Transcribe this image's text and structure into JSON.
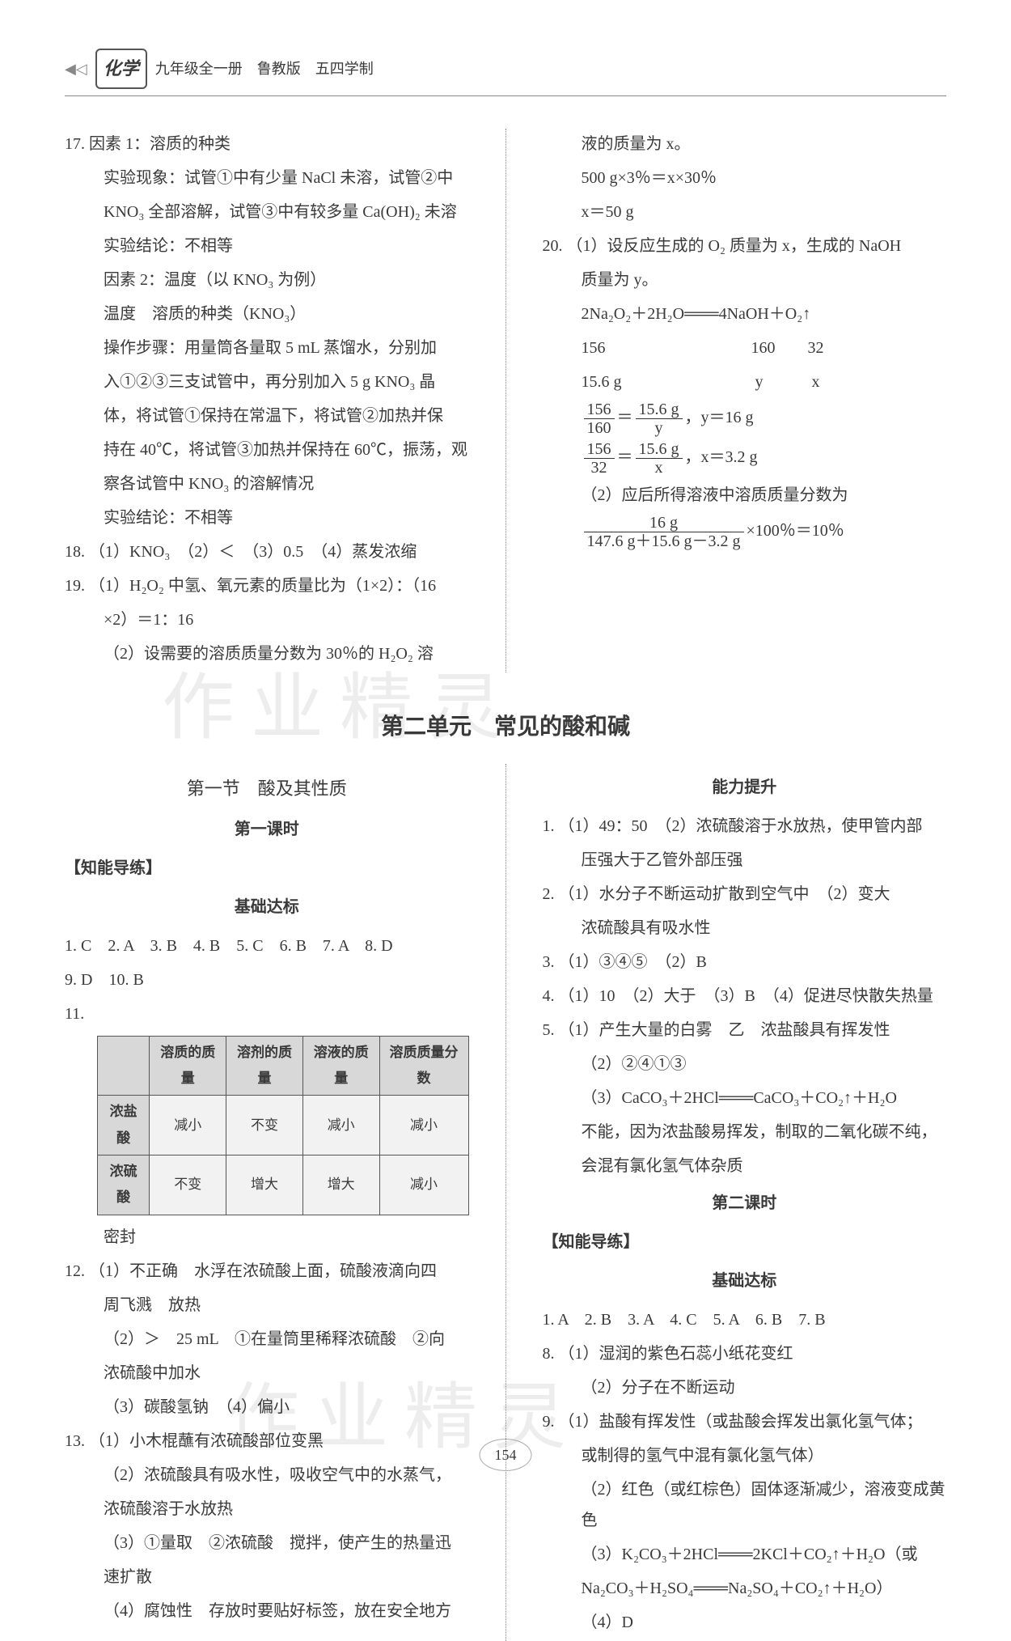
{
  "header": {
    "subject": "化学",
    "subtitle": "九年级全一册　鲁教版　五四学制"
  },
  "watermark": "作业精灵",
  "page_number": "154",
  "top_left": {
    "q17": {
      "l1": "17. 因素 1：溶质的种类",
      "l2": "实验现象：试管①中有少量 NaCl 未溶，试管②中",
      "l3": "KNO₃ 全部溶解，试管③中有较多量 Ca(OH)₂ 未溶",
      "l4": "实验结论：不相等",
      "l5": "因素 2：温度（以 KNO₃ 为例）",
      "l6": "温度　溶质的种类（KNO₃）",
      "l7": "操作步骤：用量筒各量取 5 mL 蒸馏水，分别加",
      "l8": "入①②③三支试管中，再分别加入 5 g KNO₃ 晶",
      "l9": "体，将试管①保持在常温下，将试管②加热并保",
      "l10": "持在 40℃，将试管③加热并保持在 60℃，振荡，观",
      "l11": "察各试管中 KNO₃ 的溶解情况",
      "l12": "实验结论：不相等"
    },
    "q18": "18. （1）KNO₃　（2）＜　（3）0.5　（4）蒸发浓缩",
    "q19": {
      "l1": "19. （1）H₂O₂ 中氢、氧元素的质量比为（1×2）：（16",
      "l2": "×2）＝1：16",
      "l3": "（2）设需要的溶质质量分数为 30％的 H₂O₂ 溶"
    }
  },
  "top_right": {
    "q19c": {
      "l1": "液的质量为 x。",
      "l2": "500 g×3％＝x×30％",
      "l3": "x＝50 g"
    },
    "q20": {
      "l1": "20. （1）设反应生成的 O₂ 质量为 x，生成的 NaOH",
      "l2": "质量为 y。",
      "eq": "2Na₂O₂＋2H₂O═══4NaOH＋O₂↑",
      "r1": "156　　　　　　　　　160　　32",
      "r2": "15.6 g　　　　　　　　 y　　　x",
      "f1_l": "156",
      "f1_r": "160",
      "f1_eq_l": "15.6 g",
      "f1_eq_r": "y",
      "f1_ans": "，y＝16 g",
      "f2_l": "156",
      "f2_r": "32",
      "f2_eq_l": "15.6 g",
      "f2_eq_r": "x",
      "f2_ans": "，x＝3.2 g",
      "l3": "（2）应后所得溶液中溶质质量分数为",
      "f3_top": "16 g",
      "f3_bot": "147.6 g＋15.6 g－3.2 g",
      "f3_rest": "×100％＝10％"
    }
  },
  "unit_title": "第二单元　常见的酸和碱",
  "bottom_left": {
    "section": "第一节　酸及其性质",
    "lesson": "第一课时",
    "heading1": "【知能导练】",
    "sub1": "基础达标",
    "mc1": "1. C　2. A　3. B　4. B　5. C　6. B　7. A　8. D",
    "mc2": "9. D　10. B",
    "q11_label": "11.",
    "table": {
      "headers": [
        "",
        "溶质的质量",
        "溶剂的质量",
        "溶液的质量",
        "溶质质量分数"
      ],
      "rows": [
        [
          "浓盐酸",
          "减小",
          "不变",
          "减小",
          "减小"
        ],
        [
          "浓硫酸",
          "不变",
          "增大",
          "增大",
          "减小"
        ]
      ]
    },
    "q11_extra": "密封",
    "q12": {
      "l1": "12. （1）不正确　水浮在浓硫酸上面，硫酸液滴向四",
      "l2": "周飞溅　放热",
      "l3": "（2）＞　25 mL　①在量筒里稀释浓硫酸　②向",
      "l4": "浓硫酸中加水",
      "l5": "（3）碳酸氢钠　（4）偏小"
    },
    "q13": {
      "l1": "13. （1）小木棍蘸有浓硫酸部位变黑",
      "l2": "（2）浓硫酸具有吸水性，吸收空气中的水蒸气，",
      "l3": "浓硫酸溶于水放热",
      "l4": "（3）①量取　②浓硫酸　搅拌，使产生的热量迅",
      "l5": "速扩散",
      "l6": "（4）腐蚀性　存放时要贴好标签，放在安全地方"
    }
  },
  "bottom_right": {
    "sub2": "能力提升",
    "q1": "1. （1）49：50　（2）浓硫酸溶于水放热，使甲管内部",
    "q1b": "压强大于乙管外部压强",
    "q2": "2. （1）水分子不断运动扩散到空气中　（2）变大",
    "q2b": "浓硫酸具有吸水性",
    "q3": "3. （1）③④⑤　（2）B",
    "q4": "4. （1）10　（2）大于　（3）B　（4）促进尽快散失热量",
    "q5": "5. （1）产生大量的白雾　乙　浓盐酸具有挥发性",
    "q5b": "（2）②④①③",
    "q5c": "（3）CaCO₃＋2HCl═══CaCO₃＋CO₂↑＋H₂O",
    "q5d": "不能，因为浓盐酸易挥发，制取的二氧化碳不纯，",
    "q5e": "会混有氯化氢气体杂质",
    "lesson2": "第二课时",
    "heading2": "【知能导练】",
    "sub3": "基础达标",
    "mc3": "1. A　2. B　3. A　4. C　5. A　6. B　7. B",
    "q8": "8. （1）湿润的紫色石蕊小纸花变红",
    "q8b": "（2）分子在不断运动",
    "q9": "9. （1）盐酸有挥发性（或盐酸会挥发出氯化氢气体；",
    "q9b": "或制得的氢气中混有氯化氢气体）",
    "q9c": "（2）红色（或红棕色）固体逐渐减少，溶液变成黄色",
    "q9d": "（3）K₂CO₃＋2HCl═══2KCl＋CO₂↑＋H₂O（或",
    "q9e": "Na₂CO₃＋H₂SO₄═══Na₂SO₄＋CO₂↑＋H₂O）",
    "q9f": "（4）D"
  }
}
